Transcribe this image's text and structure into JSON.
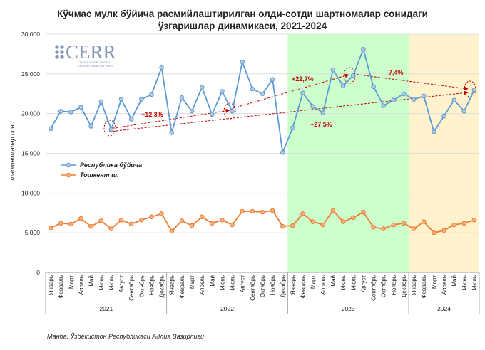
{
  "chart_data": {
    "type": "line",
    "title_line1": "Кўчмас мулк бўйича расмийлаштирилган олди-сотди шартномалар сонидаги",
    "title_line2": "ўзгаришлар динамикаси, 2021-2024",
    "ylabel": "шартномалар сони",
    "ylim": [
      0,
      30000
    ],
    "yticks": [
      "0",
      "5 000",
      "10 000",
      "15 000",
      "20 000",
      "25 000",
      "30 000"
    ],
    "ytick_values": [
      0,
      5000,
      10000,
      15000,
      20000,
      25000,
      30000
    ],
    "categories": [
      "Январь",
      "Февраль",
      "Март",
      "Апрель",
      "Май",
      "Июнь",
      "Июль",
      "Август",
      "Сентябрь",
      "Октябрь",
      "Ноябрь",
      "Декабрь",
      "Январь",
      "Февраль",
      "Март",
      "Апрель",
      "Май",
      "Июнь",
      "Июль",
      "Август",
      "Сентябрь",
      "Октябрь",
      "Ноябрь",
      "Декабрь",
      "Январь",
      "Февраль",
      "Март",
      "Апрель",
      "Май",
      "Июнь",
      "Июль",
      "Август",
      "Сентябрь",
      "Октябрь",
      "Ноябрь",
      "Декабрь",
      "Январь",
      "Февраль",
      "Март",
      "Апрель",
      "Май",
      "Июнь",
      "Июль"
    ],
    "years": [
      "2021",
      "2022",
      "2023",
      "2024"
    ],
    "series": [
      {
        "name": "Республика бўйича",
        "color": "#5b9bd5",
        "marker_fill": "#b4c7dc",
        "values": [
          18100,
          20300,
          20200,
          20800,
          18400,
          21500,
          18000,
          21800,
          19300,
          21800,
          22400,
          25800,
          17600,
          22000,
          20300,
          23300,
          19900,
          22800,
          20300,
          26500,
          23100,
          22500,
          24300,
          15100,
          18200,
          22600,
          20900,
          20100,
          25500,
          23500,
          24800,
          28100,
          23400,
          21000,
          21700,
          22500,
          21800,
          22200,
          17700,
          19700,
          21700,
          20300,
          23000
        ]
      },
      {
        "name": "Тошкент ш.",
        "color": "#ed7d31",
        "marker_fill": "#f4b183",
        "values": [
          5600,
          6200,
          6100,
          6800,
          5800,
          6500,
          5500,
          6600,
          6100,
          6600,
          7000,
          7400,
          5200,
          6500,
          5900,
          7000,
          6200,
          6600,
          6000,
          7700,
          7700,
          7600,
          7800,
          5800,
          5900,
          7400,
          6400,
          6000,
          7800,
          6400,
          6900,
          7600,
          5700,
          5500,
          6000,
          6200,
          5500,
          6400,
          5000,
          5300,
          6000,
          6200,
          6600
        ]
      }
    ],
    "shaded_periods": [
      {
        "year": "2023",
        "color": "#ccffcc"
      },
      {
        "year": "2024",
        "color": "#fff2cc"
      }
    ],
    "annotations": [
      "+12,3%",
      "+22,7%",
      "-7,4%",
      "+27,5%"
    ],
    "source": "Манба: Ўзбекистон Республикаси Адлия Вазирлиги"
  },
  "logo": {
    "name": "CERR",
    "subtitle_line1": "CENTER FOR ECONOMIC",
    "subtitle_line2": "RESEARCH AND REFORMS"
  },
  "colors": {
    "grid": "#d9d9d9",
    "annotation": "#c00000",
    "logo": "#8497b0"
  }
}
